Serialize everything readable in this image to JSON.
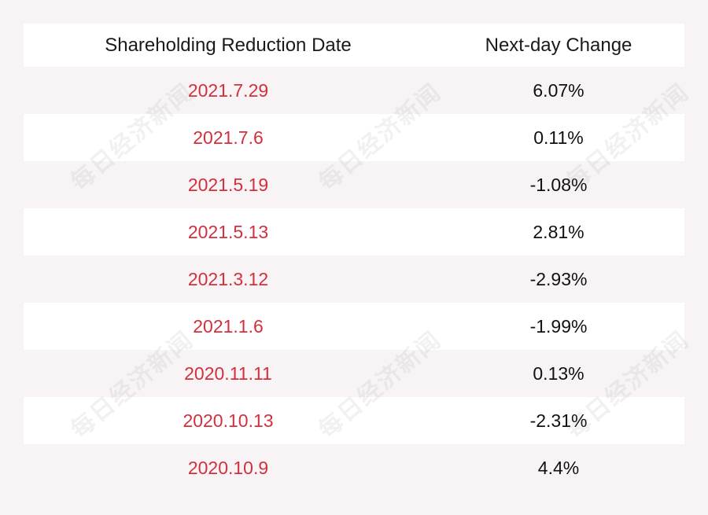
{
  "header": {
    "date_label": "Shareholding Reduction Date",
    "change_label": "Next-day Change"
  },
  "rows": [
    {
      "date": "2021.7.29",
      "change": "6.07%"
    },
    {
      "date": "2021.7.6",
      "change": "0.11%"
    },
    {
      "date": "2021.5.19",
      "change": "-1.08%"
    },
    {
      "date": "2021.5.13",
      "change": "2.81%"
    },
    {
      "date": "2021.3.12",
      "change": "-2.93%"
    },
    {
      "date": "2021.1.6",
      "change": "-1.99%"
    },
    {
      "date": "2020.11.11",
      "change": "0.13%"
    },
    {
      "date": "2020.10.13",
      "change": "-2.31%"
    },
    {
      "date": "2020.10.9",
      "change": "4.4%"
    }
  ],
  "watermark_text": "每日经济新闻",
  "colors": {
    "date_text": "#d32f3c",
    "change_text": "#111111",
    "background": "#f8f4f5",
    "stripe": "#ffffff"
  }
}
